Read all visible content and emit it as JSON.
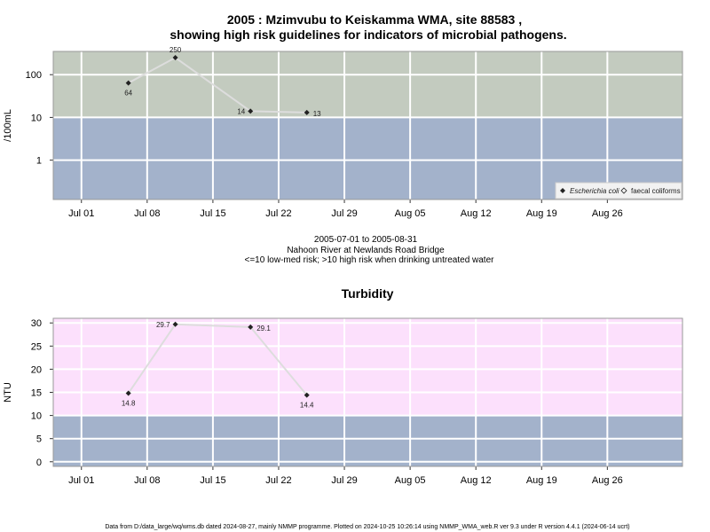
{
  "title_line1": "2005 : Mzimvubu to Keiskamma WMA, site 88583 ,",
  "title_line2": "showing high risk guidelines for indicators of microbial pathogens.",
  "caption": {
    "date_range": "2005-07-01 to 2005-08-31",
    "site": "Nahoon River at Newlands Road Bridge",
    "note": "<=10 low-med risk; >10 high risk when drinking untreated water"
  },
  "footer": "Data from D:/data_large/wq/wms.db dated 2024-08-27, mainly NMMP programme. Plotted on 2024-10-25 10:26:14 using NMMP_WMA_web.R ver 9.3 under R version 4.4.1 (2024-06-14 ucrt)",
  "colors": {
    "high_risk_zone": "#c3cbbf",
    "low_risk_zone": "#a3b2cb",
    "turbidity_zone": "#fce0fc",
    "grid": "#ffffff",
    "series_line": "#dddddd",
    "marker": "#222222"
  },
  "chart_data": [
    {
      "type": "line",
      "title": "",
      "ylabel": "/100mL",
      "yscale": "log10",
      "ylim": [
        0.12,
        350
      ],
      "yticks": [
        1,
        10,
        100
      ],
      "ytick_labels": [
        "1",
        "10",
        "100"
      ],
      "threshold": 10,
      "xlim": [
        "2005-06-28",
        "2005-09-03"
      ],
      "xticks": [
        "2005-07-01",
        "2005-07-08",
        "2005-07-15",
        "2005-07-22",
        "2005-07-29",
        "2005-08-05",
        "2005-08-12",
        "2005-08-19",
        "2005-08-26"
      ],
      "xtick_labels": [
        "Jul 01",
        "Jul 08",
        "Jul 15",
        "Jul 22",
        "Jul 29",
        "Aug 05",
        "Aug 12",
        "Aug 19",
        "Aug 26"
      ],
      "legend": {
        "position": "bottom-right",
        "entries": [
          "Escherichia coli",
          "faecal coliforms"
        ]
      },
      "series": [
        {
          "name": "Escherichia coli",
          "points": [
            {
              "x": "2005-07-06",
              "y": 64,
              "label": "64",
              "label_pos": "below"
            },
            {
              "x": "2005-07-11",
              "y": 250,
              "label": "250",
              "label_pos": "above"
            },
            {
              "x": "2005-07-19",
              "y": 14,
              "label": "14",
              "label_pos": "left"
            },
            {
              "x": "2005-07-25",
              "y": 13,
              "label": "13",
              "label_pos": "right"
            }
          ]
        }
      ]
    },
    {
      "type": "line",
      "title": "Turbidity",
      "ylabel": "NTU",
      "yscale": "linear",
      "ylim": [
        -1,
        31
      ],
      "yticks": [
        0,
        5,
        10,
        15,
        20,
        25,
        30
      ],
      "ytick_labels": [
        "0",
        "5",
        "10",
        "15",
        "20",
        "25",
        "30"
      ],
      "threshold": 10,
      "xlim": [
        "2005-06-28",
        "2005-09-03"
      ],
      "xticks": [
        "2005-07-01",
        "2005-07-08",
        "2005-07-15",
        "2005-07-22",
        "2005-07-29",
        "2005-08-05",
        "2005-08-12",
        "2005-08-19",
        "2005-08-26"
      ],
      "xtick_labels": [
        "Jul 01",
        "Jul 08",
        "Jul 15",
        "Jul 22",
        "Jul 29",
        "Aug 05",
        "Aug 12",
        "Aug 19",
        "Aug 26"
      ],
      "series": [
        {
          "name": "",
          "points": [
            {
              "x": "2005-07-06",
              "y": 14.8,
              "label": "14.8",
              "label_pos": "below"
            },
            {
              "x": "2005-07-11",
              "y": 29.7,
              "label": "29.7",
              "label_pos": "left"
            },
            {
              "x": "2005-07-19",
              "y": 29.1,
              "label": "29.1",
              "label_pos": "right"
            },
            {
              "x": "2005-07-25",
              "y": 14.4,
              "label": "14.4",
              "label_pos": "below"
            }
          ]
        }
      ]
    }
  ]
}
